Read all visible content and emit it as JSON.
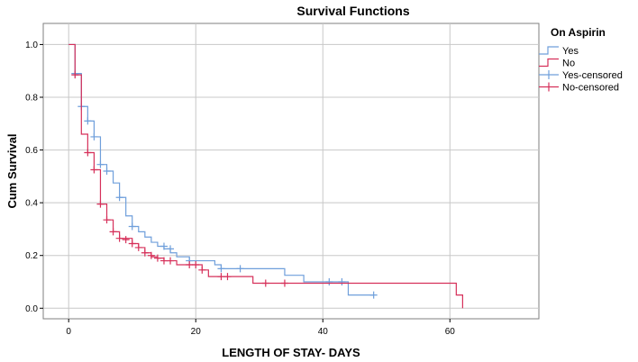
{
  "chart_data": {
    "type": "line",
    "subtype": "kaplan-meier-step",
    "title": "Survival Functions",
    "xlabel": "LENGTH OF STAY- DAYS",
    "ylabel": "Cum Survival",
    "xlim": [
      -4,
      74
    ],
    "ylim": [
      -0.04,
      1.08
    ],
    "x_ticks": [
      0,
      20,
      40,
      60
    ],
    "y_ticks": [
      0.0,
      0.2,
      0.4,
      0.6,
      0.8,
      1.0
    ],
    "y_tick_labels": [
      "0.0",
      "0.2",
      "0.4",
      "0.6",
      "0.8",
      "1.0"
    ],
    "grid": true,
    "legend_title": "On Aspirin",
    "legend_position": "top-right",
    "legend_entries": [
      "Yes",
      "No",
      "Yes-censored",
      "No-censored"
    ],
    "colors": {
      "yes": "#6f9fdb",
      "no": "#d6305a",
      "plot_bg": "#ffffff",
      "grid": "#c8c8c8",
      "frame": "#7f7f7f"
    },
    "series": [
      {
        "name": "Yes",
        "color_key": "yes",
        "steps": [
          [
            0,
            1.0
          ],
          [
            1,
            0.89
          ],
          [
            2,
            0.765
          ],
          [
            3,
            0.71
          ],
          [
            4,
            0.65
          ],
          [
            5,
            0.545
          ],
          [
            6,
            0.52
          ],
          [
            7,
            0.475
          ],
          [
            8,
            0.42
          ],
          [
            9,
            0.35
          ],
          [
            10,
            0.31
          ],
          [
            11,
            0.29
          ],
          [
            12,
            0.27
          ],
          [
            13,
            0.25
          ],
          [
            14,
            0.235
          ],
          [
            15,
            0.225
          ],
          [
            16,
            0.21
          ],
          [
            17,
            0.195
          ],
          [
            19,
            0.18
          ],
          [
            23,
            0.165
          ],
          [
            24,
            0.15
          ],
          [
            34,
            0.125
          ],
          [
            37,
            0.1
          ],
          [
            44,
            0.05
          ],
          [
            48,
            0.05
          ]
        ],
        "censored": [
          [
            1,
            0.89
          ],
          [
            2,
            0.765
          ],
          [
            3,
            0.71
          ],
          [
            4,
            0.65
          ],
          [
            5,
            0.545
          ],
          [
            6,
            0.52
          ],
          [
            8,
            0.42
          ],
          [
            10,
            0.31
          ],
          [
            15,
            0.235
          ],
          [
            16,
            0.225
          ],
          [
            19,
            0.18
          ],
          [
            24,
            0.15
          ],
          [
            27,
            0.15
          ],
          [
            41,
            0.1
          ],
          [
            43,
            0.1
          ],
          [
            48,
            0.05
          ]
        ]
      },
      {
        "name": "No",
        "color_key": "no",
        "steps": [
          [
            0,
            1.0
          ],
          [
            1,
            0.885
          ],
          [
            2,
            0.66
          ],
          [
            3,
            0.59
          ],
          [
            4,
            0.525
          ],
          [
            5,
            0.395
          ],
          [
            6,
            0.335
          ],
          [
            7,
            0.29
          ],
          [
            8,
            0.265
          ],
          [
            10,
            0.245
          ],
          [
            11,
            0.23
          ],
          [
            12,
            0.21
          ],
          [
            13,
            0.195
          ],
          [
            14,
            0.19
          ],
          [
            15,
            0.18
          ],
          [
            17,
            0.165
          ],
          [
            21,
            0.145
          ],
          [
            22,
            0.12
          ],
          [
            29,
            0.095
          ],
          [
            61,
            0.05
          ],
          [
            62,
            0.0
          ]
        ],
        "censored": [
          [
            1,
            0.885
          ],
          [
            3,
            0.59
          ],
          [
            4,
            0.525
          ],
          [
            5,
            0.395
          ],
          [
            6,
            0.335
          ],
          [
            7,
            0.29
          ],
          [
            8,
            0.265
          ],
          [
            9,
            0.26
          ],
          [
            10,
            0.245
          ],
          [
            11,
            0.23
          ],
          [
            12,
            0.21
          ],
          [
            13,
            0.2
          ],
          [
            14,
            0.19
          ],
          [
            15,
            0.18
          ],
          [
            16,
            0.18
          ],
          [
            19,
            0.165
          ],
          [
            20,
            0.165
          ],
          [
            21,
            0.145
          ],
          [
            24,
            0.12
          ],
          [
            25,
            0.12
          ],
          [
            31,
            0.095
          ],
          [
            34,
            0.095
          ]
        ]
      }
    ]
  }
}
